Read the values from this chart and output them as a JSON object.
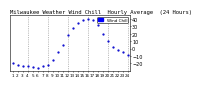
{
  "title": "Milwaukee Weather Wind Chill  Hourly Average  (24 Hours)",
  "hours": [
    1,
    2,
    3,
    4,
    5,
    6,
    7,
    8,
    9,
    10,
    11,
    12,
    13,
    14,
    15,
    16,
    17,
    18,
    19,
    20,
    21,
    22,
    23,
    24
  ],
  "values": [
    -20,
    -22,
    -23,
    -24,
    -25,
    -26,
    -24,
    -22,
    -15,
    -5,
    5,
    18,
    28,
    35,
    38,
    40,
    38,
    32,
    20,
    10,
    2,
    -2,
    -5,
    -8
  ],
  "dot_color": "#0000cc",
  "bg_color": "#ffffff",
  "grid_color": "#888888",
  "legend_bg": "#0000ff",
  "ylim": [
    -30,
    45
  ],
  "yticks": [
    -20,
    -10,
    0,
    10,
    20,
    30,
    40
  ],
  "ylabel_fontsize": 3.5,
  "xlabel_fontsize": 3.0,
  "title_fontsize": 4.0,
  "grid_hours": [
    4,
    8,
    12,
    16,
    20,
    24
  ],
  "legend_label": "Wind Chill"
}
